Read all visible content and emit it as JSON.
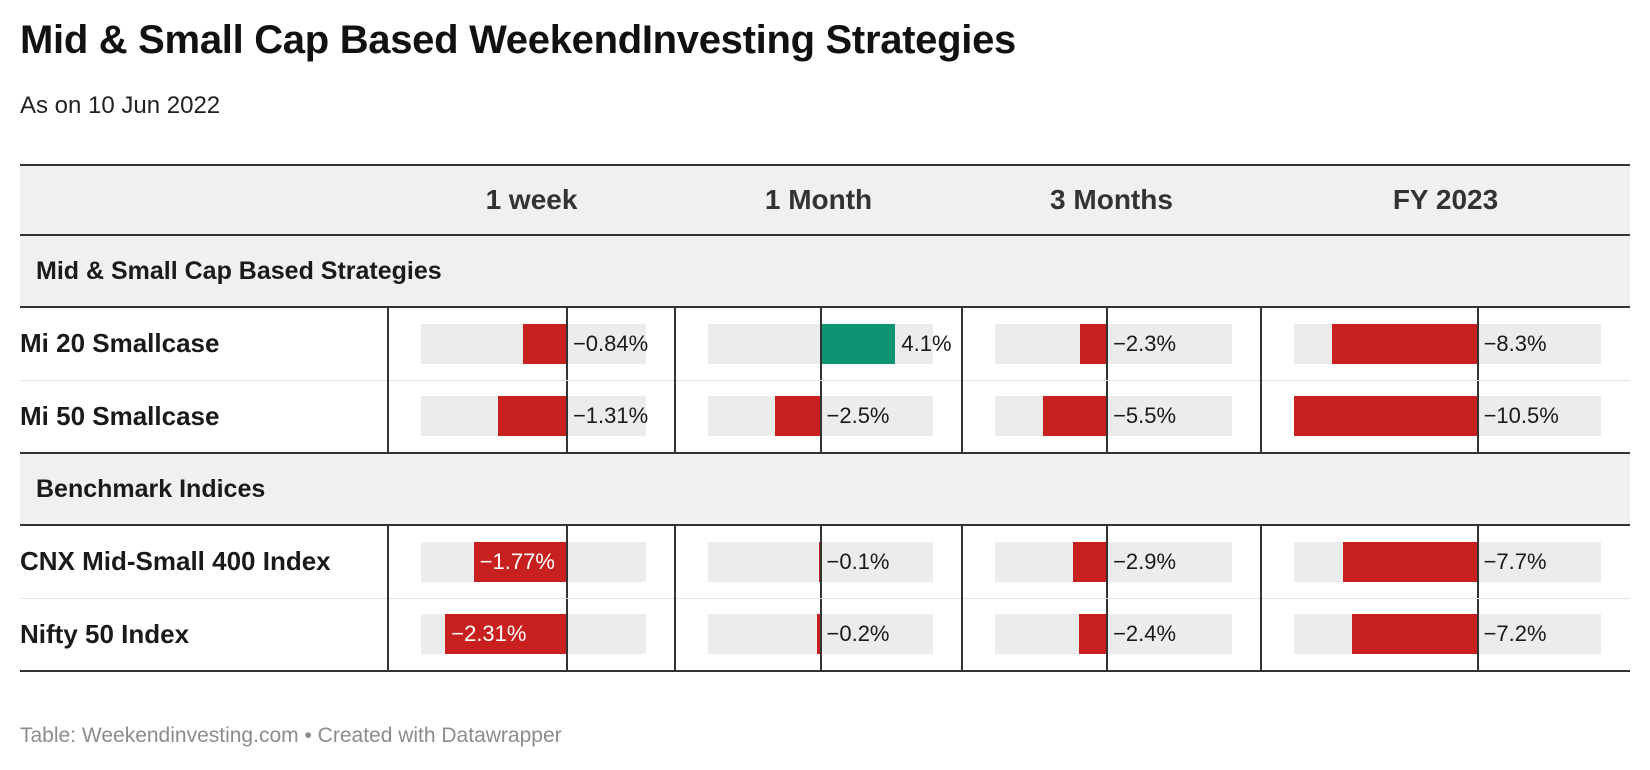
{
  "title": "Mid & Small Cap Based WeekendInvesting Strategies",
  "subtitle": "As on 10 Jun 2022",
  "footer": {
    "source_label": "Table:",
    "source": "Weekendinvesting.com",
    "separator": "•",
    "credit": "Created with Datawrapper"
  },
  "colors": {
    "negative": "#c8201f",
    "positive": "#0f9473",
    "track": "#ececec",
    "axis": "#333333"
  },
  "chart_data": {
    "type": "table",
    "columns": [
      "1 week",
      "1 Month",
      "3 Months",
      "FY 2023"
    ],
    "column_ranges": [
      [
        -2.77,
        1.5
      ],
      [
        -6.16,
        6.16
      ],
      [
        -9.6,
        10.7
      ],
      [
        -10.5,
        7.06
      ]
    ],
    "groups": [
      {
        "name": "Mid & Small Cap Based Strategies",
        "rows": [
          {
            "label": "Mi 20 Smallcase",
            "values": [
              -0.84,
              4.1,
              -2.3,
              -8.3
            ],
            "display": [
              "−0.84%",
              "4.1%",
              "−2.3%",
              "−8.3%"
            ]
          },
          {
            "label": "Mi 50 Smallcase",
            "values": [
              -1.31,
              -2.5,
              -5.5,
              -10.5
            ],
            "display": [
              "−1.31%",
              "−2.5%",
              "−5.5%",
              "−10.5%"
            ]
          }
        ]
      },
      {
        "name": "Benchmark Indices",
        "rows": [
          {
            "label": "CNX Mid-Small 400 Index",
            "values": [
              -1.77,
              -0.1,
              -2.9,
              -7.7
            ],
            "display": [
              "−1.77%",
              "−0.1%",
              "−2.9%",
              "−7.7%"
            ]
          },
          {
            "label": "Nifty 50 Index",
            "values": [
              -2.31,
              -0.2,
              -2.4,
              -7.2
            ],
            "display": [
              "−2.31%",
              "−0.2%",
              "−2.4%",
              "−7.2%"
            ]
          }
        ]
      }
    ]
  }
}
